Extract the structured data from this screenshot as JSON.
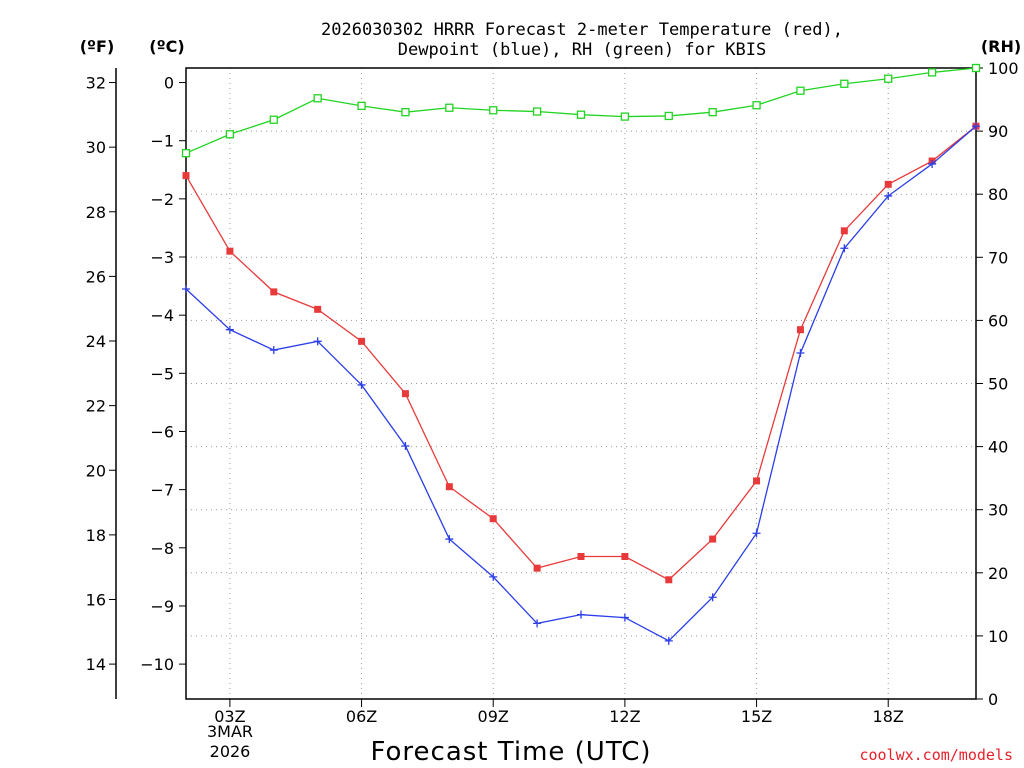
{
  "chart_data": {
    "type": "line",
    "title_line1": "2026030302 HRRR Forecast 2-meter Temperature (red),",
    "title_line2": "Dewpoint (blue), RH (green) for KBIS",
    "xlabel": "Forecast Time (UTC)",
    "credit": "coolwx.com/models",
    "unit_f": "(ºF)",
    "unit_c": "(ºC)",
    "unit_rh": "(RH)",
    "date_label_1": "3MAR",
    "date_label_2": "2026",
    "x_hours": [
      2,
      3,
      4,
      5,
      6,
      7,
      8,
      9,
      10,
      11,
      12,
      13,
      14,
      15,
      16,
      17,
      18,
      19,
      20
    ],
    "xlim": [
      2,
      20
    ],
    "x_ticks": [
      {
        "hour": 3,
        "label": "03Z"
      },
      {
        "hour": 6,
        "label": "06Z"
      },
      {
        "hour": 9,
        "label": "09Z"
      },
      {
        "hour": 12,
        "label": "12Z"
      },
      {
        "hour": 15,
        "label": "15Z"
      },
      {
        "hour": 18,
        "label": "18Z"
      }
    ],
    "celsius_axis": {
      "range": [
        -10.6,
        0.25
      ],
      "ticks": [
        0,
        -1,
        -2,
        -3,
        -4,
        -5,
        -6,
        -7,
        -8,
        -9,
        -10
      ],
      "tick_labels": [
        "0",
        "−1",
        "−2",
        "−3",
        "−4",
        "−5",
        "−6",
        "−7",
        "−8",
        "−9",
        "−10"
      ]
    },
    "fahrenheit_axis": {
      "ticks": [
        32,
        30,
        28,
        26,
        24,
        22,
        20,
        18,
        16,
        14
      ],
      "tick_labels": [
        "32",
        "30",
        "28",
        "26",
        "24",
        "22",
        "20",
        "18",
        "16",
        "14"
      ]
    },
    "rh_axis": {
      "range": [
        0,
        100
      ],
      "ticks": [
        100,
        90,
        80,
        70,
        60,
        50,
        40,
        30,
        20,
        10,
        0
      ],
      "tick_labels": [
        "100",
        "90",
        "80",
        "70",
        "60",
        "50",
        "40",
        "30",
        "20",
        "10",
        "0"
      ]
    },
    "series": [
      {
        "name": "Temperature",
        "color": "#e83a3a",
        "marker": "filled-square",
        "units": "C",
        "values": [
          -1.6,
          -2.9,
          -3.6,
          -3.9,
          -4.45,
          -5.35,
          -6.95,
          -7.5,
          -8.35,
          -8.15,
          -8.15,
          -8.55,
          -7.85,
          -6.85,
          -4.25,
          -2.55,
          -1.75,
          -1.35,
          -0.75
        ]
      },
      {
        "name": "Dewpoint",
        "color": "#2b3ee8",
        "marker": "plus",
        "units": "C",
        "values": [
          -3.55,
          -4.25,
          -4.6,
          -4.45,
          -5.2,
          -6.25,
          -7.85,
          -8.5,
          -9.3,
          -9.15,
          -9.2,
          -9.6,
          -8.85,
          -7.75,
          -4.65,
          -2.85,
          -1.95,
          -1.4,
          -0.75
        ]
      },
      {
        "name": "RH",
        "color": "#22d422",
        "marker": "open-square",
        "units": "%",
        "values": [
          86.5,
          89.5,
          91.8,
          95.2,
          94.0,
          93.0,
          93.7,
          93.3,
          93.1,
          92.6,
          92.3,
          92.4,
          93.0,
          94.1,
          96.4,
          97.5,
          98.3,
          99.3,
          100.0
        ]
      }
    ]
  }
}
